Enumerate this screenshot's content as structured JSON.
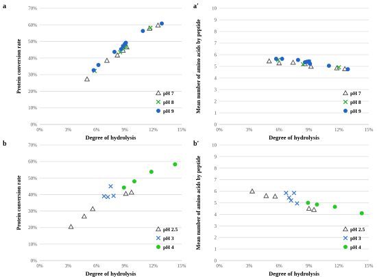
{
  "chart_data": [
    {
      "panel": "a",
      "type": "scatter",
      "xlabel": "Degree of hydrolysis",
      "ylabel": "Protein conversion rate",
      "xlim": [
        0,
        0.15
      ],
      "ylim": [
        0,
        0.7
      ],
      "xticks": [
        "0%",
        "3%",
        "6%",
        "9%",
        "12%",
        "15%"
      ],
      "yticks": [
        "0%",
        "10%",
        "20%",
        "30%",
        "40%",
        "50%",
        "60%",
        "70%"
      ],
      "legend_position": "bottom-right",
      "series": [
        {
          "name": "pH 7",
          "marker": "triangle",
          "color": "#444444",
          "points": [
            [
              0.05,
              0.273
            ],
            [
              0.071,
              0.385
            ],
            [
              0.082,
              0.417
            ],
            [
              0.088,
              0.445
            ],
            [
              0.092,
              0.465
            ],
            [
              0.116,
              0.578
            ],
            [
              0.125,
              0.597
            ]
          ]
        },
        {
          "name": "pH 8",
          "marker": "x",
          "color": "#22aa22",
          "points": [
            [
              0.058,
              0.322
            ],
            [
              0.085,
              0.435
            ],
            [
              0.088,
              0.455
            ],
            [
              0.091,
              0.468
            ],
            [
              0.117,
              0.582
            ]
          ]
        },
        {
          "name": "pH 9",
          "marker": "circle",
          "color": "#2266cc",
          "points": [
            [
              0.057,
              0.327
            ],
            [
              0.062,
              0.358
            ],
            [
              0.079,
              0.437
            ],
            [
              0.086,
              0.453
            ],
            [
              0.088,
              0.472
            ],
            [
              0.09,
              0.485
            ],
            [
              0.091,
              0.492
            ],
            [
              0.109,
              0.563
            ],
            [
              0.129,
              0.608
            ]
          ]
        }
      ]
    },
    {
      "panel": "a′",
      "type": "scatter",
      "xlabel": "Degree of hydrolysis",
      "ylabel": "Mean number of amino acids by peptide",
      "xlim": [
        0,
        0.15
      ],
      "ylim": [
        0,
        10
      ],
      "xticks": [
        "0%",
        "3%",
        "6%",
        "9%",
        "12%",
        "15%"
      ],
      "yticks": [
        "0",
        "1",
        "2",
        "3",
        "4",
        "5",
        "6",
        "7",
        "8",
        "9",
        "10"
      ],
      "legend_position": "bottom-right",
      "series": [
        {
          "name": "pH 7",
          "marker": "triangle",
          "color": "#444444",
          "points": [
            [
              0.05,
              5.45
            ],
            [
              0.06,
              5.28
            ],
            [
              0.074,
              5.33
            ],
            [
              0.086,
              5.22
            ],
            [
              0.092,
              4.98
            ],
            [
              0.118,
              4.85
            ],
            [
              0.126,
              4.78
            ]
          ]
        },
        {
          "name": "pH 8",
          "marker": "x",
          "color": "#22aa22",
          "points": [
            [
              0.059,
              5.55
            ],
            [
              0.084,
              5.18
            ],
            [
              0.088,
              5.35
            ],
            [
              0.09,
              5.4
            ],
            [
              0.12,
              4.92
            ]
          ]
        },
        {
          "name": "pH 9",
          "marker": "circle",
          "color": "#2266cc",
          "points": [
            [
              0.057,
              5.65
            ],
            [
              0.063,
              5.65
            ],
            [
              0.079,
              5.55
            ],
            [
              0.086,
              5.35
            ],
            [
              0.088,
              5.4
            ],
            [
              0.09,
              5.43
            ],
            [
              0.091,
              5.22
            ],
            [
              0.11,
              5.05
            ],
            [
              0.129,
              4.75
            ]
          ]
        }
      ]
    },
    {
      "panel": "b",
      "type": "scatter",
      "xlabel": "Degree of hydrolysis",
      "ylabel": "Protein conversion rate",
      "xlim": [
        0,
        0.15
      ],
      "ylim": [
        0,
        0.7
      ],
      "xticks": [
        "0%",
        "3%",
        "6%",
        "9%",
        "12%",
        "15%"
      ],
      "yticks": [
        "0%",
        "10%",
        "20%",
        "30%",
        "40%",
        "50%",
        "60%",
        "70%"
      ],
      "legend_position": "bottom-right",
      "series": [
        {
          "name": "pH 2.5",
          "marker": "triangle",
          "color": "#444444",
          "points": [
            [
              0.033,
              0.205
            ],
            [
              0.047,
              0.268
            ],
            [
              0.056,
              0.313
            ],
            [
              0.091,
              0.405
            ],
            [
              0.097,
              0.413
            ]
          ]
        },
        {
          "name": "pH 3",
          "marker": "x",
          "color": "#3377cc",
          "points": [
            [
              0.068,
              0.39
            ],
            [
              0.072,
              0.385
            ],
            [
              0.075,
              0.45
            ],
            [
              0.078,
              0.392
            ]
          ]
        },
        {
          "name": "pH 4",
          "marker": "circle",
          "color": "#22cc22",
          "points": [
            [
              0.089,
              0.442
            ],
            [
              0.1,
              0.48
            ],
            [
              0.118,
              0.538
            ],
            [
              0.143,
              0.583
            ]
          ]
        }
      ]
    },
    {
      "panel": "b′",
      "type": "scatter",
      "xlabel": "Degree of hydrolysis",
      "ylabel": "Mean number of amino acids by peptide",
      "xlim": [
        0,
        0.15
      ],
      "ylim": [
        0,
        10
      ],
      "xticks": [
        "0%",
        "3%",
        "6%",
        "9%",
        "12%",
        "15%"
      ],
      "yticks": [
        "0",
        "1",
        "2",
        "3",
        "4",
        "5",
        "6",
        "7",
        "8",
        "9",
        "10"
      ],
      "legend_position": "bottom-right",
      "series": [
        {
          "name": "pH 2.5",
          "marker": "triangle",
          "color": "#444444",
          "points": [
            [
              0.033,
              6.0
            ],
            [
              0.047,
              5.6
            ],
            [
              0.056,
              5.55
            ],
            [
              0.09,
              4.5
            ],
            [
              0.095,
              4.4
            ]
          ]
        },
        {
          "name": "pH 3",
          "marker": "x",
          "color": "#3377cc",
          "points": [
            [
              0.067,
              5.85
            ],
            [
              0.07,
              5.45
            ],
            [
              0.072,
              5.2
            ],
            [
              0.075,
              5.85
            ],
            [
              0.078,
              4.95
            ]
          ]
        },
        {
          "name": "pH 4",
          "marker": "circle",
          "color": "#22cc22",
          "points": [
            [
              0.089,
              5.0
            ],
            [
              0.098,
              4.85
            ],
            [
              0.116,
              4.65
            ],
            [
              0.143,
              4.1
            ]
          ]
        }
      ]
    }
  ]
}
